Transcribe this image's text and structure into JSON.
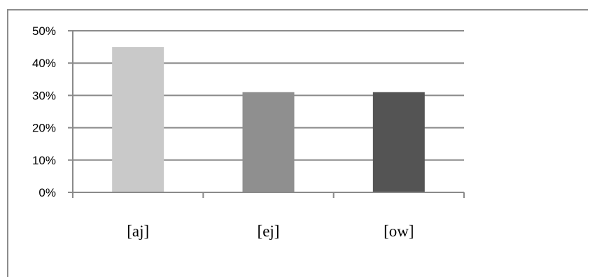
{
  "chart_data": {
    "type": "bar",
    "title": "",
    "xlabel": "",
    "ylabel": "",
    "categories": [
      "[aj]",
      "[ej]",
      "[ow]"
    ],
    "values": [
      45,
      31,
      31
    ],
    "ylim": [
      0,
      50
    ],
    "yticks": [
      0,
      10,
      20,
      30,
      40,
      50
    ],
    "ytick_labels": [
      "0%",
      "10%",
      "20%",
      "30%",
      "40%",
      "50%"
    ],
    "grid": true,
    "legend": "none",
    "colors": [
      "#c9c9c9",
      "#8f8f8f",
      "#545454"
    ]
  }
}
